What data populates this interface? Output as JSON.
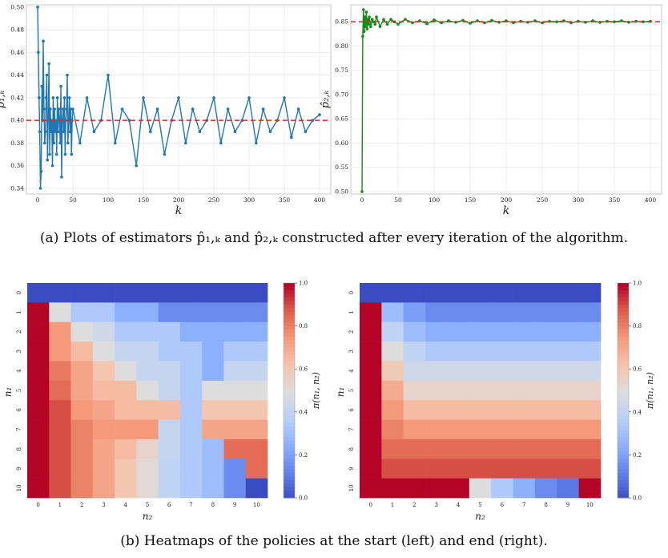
{
  "captions": {
    "a": "(a) Plots of estimators p̂₁,ₖ and p̂₂,ₖ constructed after every iteration of the algorithm.",
    "b": "(b) Heatmaps of the policies at the start (left) and end (right)."
  },
  "chart_data": [
    {
      "type": "line",
      "id": "p1",
      "xlabel": "k",
      "ylabel": "p̂₁,ₖ",
      "xlim": [
        0,
        400
      ],
      "ylim": [
        0.335,
        0.502
      ],
      "xticks": [
        0,
        50,
        100,
        150,
        200,
        250,
        300,
        350,
        400
      ],
      "yticks": [
        0.34,
        0.36,
        0.38,
        0.4,
        0.42,
        0.44,
        0.46,
        0.48,
        0.5
      ],
      "reference_line": 0.4,
      "series_color": "#1f77b4",
      "reference_color": "#d62728",
      "grid": true,
      "series": [
        {
          "x": [
            0,
            1,
            2,
            3,
            4,
            5,
            6,
            7,
            8,
            9,
            10,
            11,
            12,
            13,
            14,
            15,
            16,
            17,
            18,
            19,
            20,
            21,
            22,
            23,
            24,
            25,
            26,
            27,
            28,
            29,
            30,
            31,
            32,
            33,
            34,
            35,
            36,
            37,
            38,
            39,
            40,
            41,
            42,
            43,
            44,
            45,
            46,
            47,
            48,
            49,
            50,
            60,
            70,
            80,
            90,
            100,
            110,
            120,
            130,
            140,
            150,
            160,
            170,
            180,
            190,
            200,
            210,
            220,
            230,
            240,
            250,
            260,
            270,
            280,
            290,
            300,
            310,
            320,
            330,
            340,
            350,
            360,
            370,
            380,
            390,
            400
          ],
          "y": [
            0.5,
            0.46,
            0.42,
            0.39,
            0.34,
            0.355,
            0.43,
            0.4,
            0.47,
            0.41,
            0.38,
            0.39,
            0.42,
            0.44,
            0.365,
            0.4,
            0.45,
            0.37,
            0.41,
            0.39,
            0.4,
            0.36,
            0.42,
            0.38,
            0.41,
            0.39,
            0.4,
            0.37,
            0.42,
            0.39,
            0.41,
            0.4,
            0.38,
            0.43,
            0.35,
            0.4,
            0.41,
            0.39,
            0.42,
            0.37,
            0.4,
            0.41,
            0.44,
            0.38,
            0.4,
            0.42,
            0.39,
            0.41,
            0.37,
            0.4,
            0.41,
            0.38,
            0.42,
            0.39,
            0.4,
            0.44,
            0.38,
            0.41,
            0.4,
            0.36,
            0.42,
            0.39,
            0.41,
            0.37,
            0.4,
            0.42,
            0.38,
            0.41,
            0.39,
            0.4,
            0.42,
            0.38,
            0.41,
            0.39,
            0.4,
            0.42,
            0.38,
            0.41,
            0.39,
            0.4,
            0.42,
            0.385,
            0.41,
            0.39,
            0.4,
            0.405
          ]
        }
      ]
    },
    {
      "type": "line",
      "id": "p2",
      "xlabel": "k",
      "ylabel": "p̂₂,ₖ",
      "xlim": [
        0,
        400
      ],
      "ylim": [
        0.495,
        0.885
      ],
      "xticks": [
        0,
        50,
        100,
        150,
        200,
        250,
        300,
        350,
        400
      ],
      "yticks": [
        0.5,
        0.55,
        0.6,
        0.65,
        0.7,
        0.75,
        0.8,
        0.85
      ],
      "reference_line": 0.85,
      "series_color": "#1a8a1a",
      "reference_color": "#d62728",
      "grid": true,
      "series": [
        {
          "x": [
            0,
            1,
            2,
            3,
            4,
            5,
            6,
            7,
            8,
            9,
            10,
            12,
            14,
            16,
            18,
            20,
            25,
            30,
            35,
            40,
            45,
            50,
            60,
            70,
            80,
            90,
            100,
            110,
            120,
            130,
            140,
            150,
            160,
            170,
            180,
            190,
            200,
            210,
            220,
            230,
            240,
            250,
            260,
            270,
            280,
            290,
            300,
            310,
            320,
            330,
            340,
            350,
            360,
            370,
            380,
            390,
            400
          ],
          "y": [
            0.5,
            0.82,
            0.875,
            0.83,
            0.86,
            0.84,
            0.87,
            0.835,
            0.855,
            0.845,
            0.86,
            0.84,
            0.855,
            0.85,
            0.845,
            0.86,
            0.84,
            0.855,
            0.845,
            0.855,
            0.85,
            0.845,
            0.855,
            0.848,
            0.852,
            0.846,
            0.854,
            0.848,
            0.852,
            0.849,
            0.853,
            0.847,
            0.852,
            0.848,
            0.853,
            0.849,
            0.852,
            0.848,
            0.851,
            0.849,
            0.852,
            0.848,
            0.851,
            0.85,
            0.852,
            0.848,
            0.851,
            0.849,
            0.852,
            0.849,
            0.851,
            0.85,
            0.852,
            0.849,
            0.851,
            0.85,
            0.851
          ]
        }
      ]
    },
    {
      "type": "heatmap",
      "id": "hm_start",
      "xlabel": "n₂",
      "ylabel": "n₁",
      "colorbar_label": "π(n₁, n₂)",
      "xticks": [
        "0",
        "1",
        "2",
        "3",
        "4",
        "5",
        "6",
        "7",
        "8",
        "9",
        "10"
      ],
      "yticks": [
        "0",
        "1",
        "2",
        "3",
        "4",
        "5",
        "6",
        "7",
        "8",
        "9",
        "10"
      ],
      "colorbar_ticks": [
        "0.0",
        "0.2",
        "0.4",
        "0.6",
        "0.8",
        "1.0"
      ],
      "vmin": 0,
      "vmax": 1,
      "values": [
        [
          0.0,
          0.0,
          0.0,
          0.0,
          0.0,
          0.0,
          0.0,
          0.0,
          0.0,
          0.0,
          0.0
        ],
        [
          1.0,
          0.5,
          0.35,
          0.35,
          0.25,
          0.25,
          0.15,
          0.15,
          0.15,
          0.15,
          0.15
        ],
        [
          1.0,
          0.75,
          0.5,
          0.45,
          0.35,
          0.35,
          0.35,
          0.25,
          0.25,
          0.25,
          0.25
        ],
        [
          1.0,
          0.75,
          0.65,
          0.5,
          0.42,
          0.42,
          0.35,
          0.35,
          0.25,
          0.35,
          0.35
        ],
        [
          1.0,
          0.82,
          0.72,
          0.62,
          0.5,
          0.42,
          0.42,
          0.35,
          0.25,
          0.42,
          0.42
        ],
        [
          1.0,
          0.85,
          0.72,
          0.65,
          0.65,
          0.5,
          0.42,
          0.35,
          0.5,
          0.5,
          0.5
        ],
        [
          1.0,
          0.9,
          0.75,
          0.72,
          0.65,
          0.65,
          0.65,
          0.35,
          0.62,
          0.62,
          0.62
        ],
        [
          1.0,
          0.9,
          0.8,
          0.75,
          0.75,
          0.75,
          0.42,
          0.35,
          0.72,
          0.72,
          0.72
        ],
        [
          1.0,
          0.9,
          0.8,
          0.72,
          0.65,
          0.55,
          0.42,
          0.35,
          0.3,
          0.85,
          0.85
        ],
        [
          1.0,
          0.9,
          0.8,
          0.72,
          0.62,
          0.52,
          0.4,
          0.35,
          0.3,
          0.15,
          0.85
        ],
        [
          1.0,
          0.9,
          0.8,
          0.72,
          0.62,
          0.52,
          0.4,
          0.35,
          0.3,
          0.15,
          0.0
        ]
      ]
    },
    {
      "type": "heatmap",
      "id": "hm_end",
      "xlabel": "n₂",
      "ylabel": "n₁",
      "colorbar_label": "π(n₁, n₂)",
      "xticks": [
        "0",
        "1",
        "2",
        "3",
        "4",
        "5",
        "6",
        "7",
        "8",
        "9",
        "10"
      ],
      "yticks": [
        "0",
        "1",
        "2",
        "3",
        "4",
        "5",
        "6",
        "7",
        "8",
        "9",
        "10"
      ],
      "colorbar_ticks": [
        "0.0",
        "0.2",
        "0.4",
        "0.6",
        "0.8",
        "1.0"
      ],
      "vmin": 0,
      "vmax": 1,
      "values": [
        [
          0.0,
          0.0,
          0.0,
          0.0,
          0.0,
          0.0,
          0.0,
          0.0,
          0.0,
          0.0,
          0.0
        ],
        [
          1.0,
          0.3,
          0.2,
          0.15,
          0.15,
          0.15,
          0.15,
          0.15,
          0.15,
          0.15,
          0.15
        ],
        [
          1.0,
          0.4,
          0.3,
          0.25,
          0.25,
          0.25,
          0.25,
          0.25,
          0.25,
          0.25,
          0.25
        ],
        [
          1.0,
          0.5,
          0.4,
          0.35,
          0.35,
          0.35,
          0.35,
          0.35,
          0.35,
          0.35,
          0.35
        ],
        [
          1.0,
          0.6,
          0.45,
          0.45,
          0.45,
          0.45,
          0.45,
          0.45,
          0.45,
          0.45,
          0.45
        ],
        [
          1.0,
          0.7,
          0.55,
          0.55,
          0.55,
          0.55,
          0.55,
          0.55,
          0.55,
          0.55,
          0.55
        ],
        [
          1.0,
          0.75,
          0.65,
          0.65,
          0.65,
          0.65,
          0.65,
          0.65,
          0.65,
          0.65,
          0.65
        ],
        [
          1.0,
          0.8,
          0.75,
          0.75,
          0.75,
          0.75,
          0.75,
          0.75,
          0.75,
          0.75,
          0.75
        ],
        [
          1.0,
          0.85,
          0.85,
          0.85,
          0.85,
          0.85,
          0.85,
          0.85,
          0.85,
          0.85,
          0.85
        ],
        [
          1.0,
          0.9,
          0.9,
          0.9,
          0.9,
          0.9,
          0.9,
          0.9,
          0.9,
          0.9,
          0.9
        ],
        [
          1.0,
          1.0,
          1.0,
          1.0,
          1.0,
          0.5,
          0.35,
          0.25,
          0.15,
          0.1,
          1.0
        ]
      ]
    }
  ]
}
